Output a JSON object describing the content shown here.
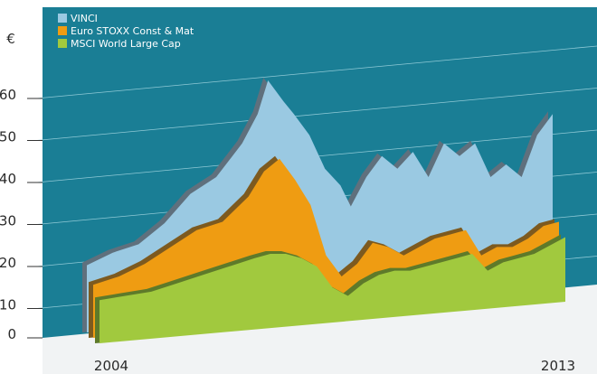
{
  "chart_data": {
    "type": "area",
    "title": "",
    "xlabel": "",
    "ylabel": "",
    "unit_label": "€",
    "x_tick_labels": [
      "2004",
      "2013"
    ],
    "y_ticks": [
      0,
      10,
      20,
      30,
      40,
      50,
      60
    ],
    "ylim": [
      0,
      66
    ],
    "xlim": [
      2004,
      2013
    ],
    "grid": true,
    "legend_position": "top-left",
    "colors": {
      "background": "#1a7e95",
      "floor": "#f1f3f4",
      "grid": "#8fc9d6"
    },
    "series": [
      {
        "name": "VINCI",
        "color": "#9ac9e2",
        "shadow": "#5f707d",
        "x": [
          2004.0,
          2004.5,
          2005.0,
          2005.5,
          2006.0,
          2006.5,
          2007.0,
          2007.3,
          2007.5,
          2007.8,
          2008.0,
          2008.3,
          2008.6,
          2008.9,
          2009.1,
          2009.4,
          2009.7,
          2010.0,
          2010.3,
          2010.6,
          2010.9,
          2011.2,
          2011.5,
          2011.8,
          2012.1,
          2012.4,
          2012.7,
          2013.0
        ],
        "values": [
          19,
          22,
          24,
          29,
          36,
          40,
          48,
          55,
          63,
          58,
          55,
          50,
          42,
          38,
          33,
          40,
          45,
          42,
          46,
          40,
          48,
          45,
          48,
          40,
          43,
          40,
          50,
          55
        ]
      },
      {
        "name": "Euro STOXX Const & Mat",
        "color": "#ef9c12",
        "shadow": "#7d5a1f",
        "x": [
          2004.0,
          2004.5,
          2005.0,
          2005.5,
          2006.0,
          2006.5,
          2007.0,
          2007.3,
          2007.6,
          2007.9,
          2008.2,
          2008.5,
          2008.8,
          2009.1,
          2009.4,
          2009.7,
          2010.0,
          2010.3,
          2010.6,
          2010.9,
          2011.2,
          2011.5,
          2011.8,
          2012.1,
          2012.4,
          2012.7,
          2013.0
        ],
        "values": [
          15,
          17,
          20,
          24,
          28,
          30,
          36,
          42,
          45,
          40,
          34,
          22,
          17,
          20,
          25,
          24,
          22,
          24,
          26,
          27,
          28,
          22,
          24,
          24,
          26,
          29,
          30
        ]
      },
      {
        "name": "MSCI World Large Cap",
        "color": "#a1c93e",
        "shadow": "#5e7a2a",
        "x": [
          2004.0,
          2004.5,
          2005.0,
          2005.5,
          2006.0,
          2006.5,
          2007.0,
          2007.3,
          2007.6,
          2007.9,
          2008.2,
          2008.5,
          2008.8,
          2009.1,
          2009.4,
          2009.7,
          2010.0,
          2010.3,
          2010.6,
          2010.9,
          2011.2,
          2011.5,
          2011.8,
          2012.1,
          2012.4,
          2012.7,
          2013.0
        ],
        "values": [
          12,
          13,
          14,
          16,
          18,
          20,
          22,
          23,
          23,
          22,
          20,
          15,
          13,
          16,
          18,
          19,
          19,
          20,
          21,
          22,
          23,
          19,
          21,
          22,
          23,
          25,
          27
        ]
      }
    ]
  }
}
